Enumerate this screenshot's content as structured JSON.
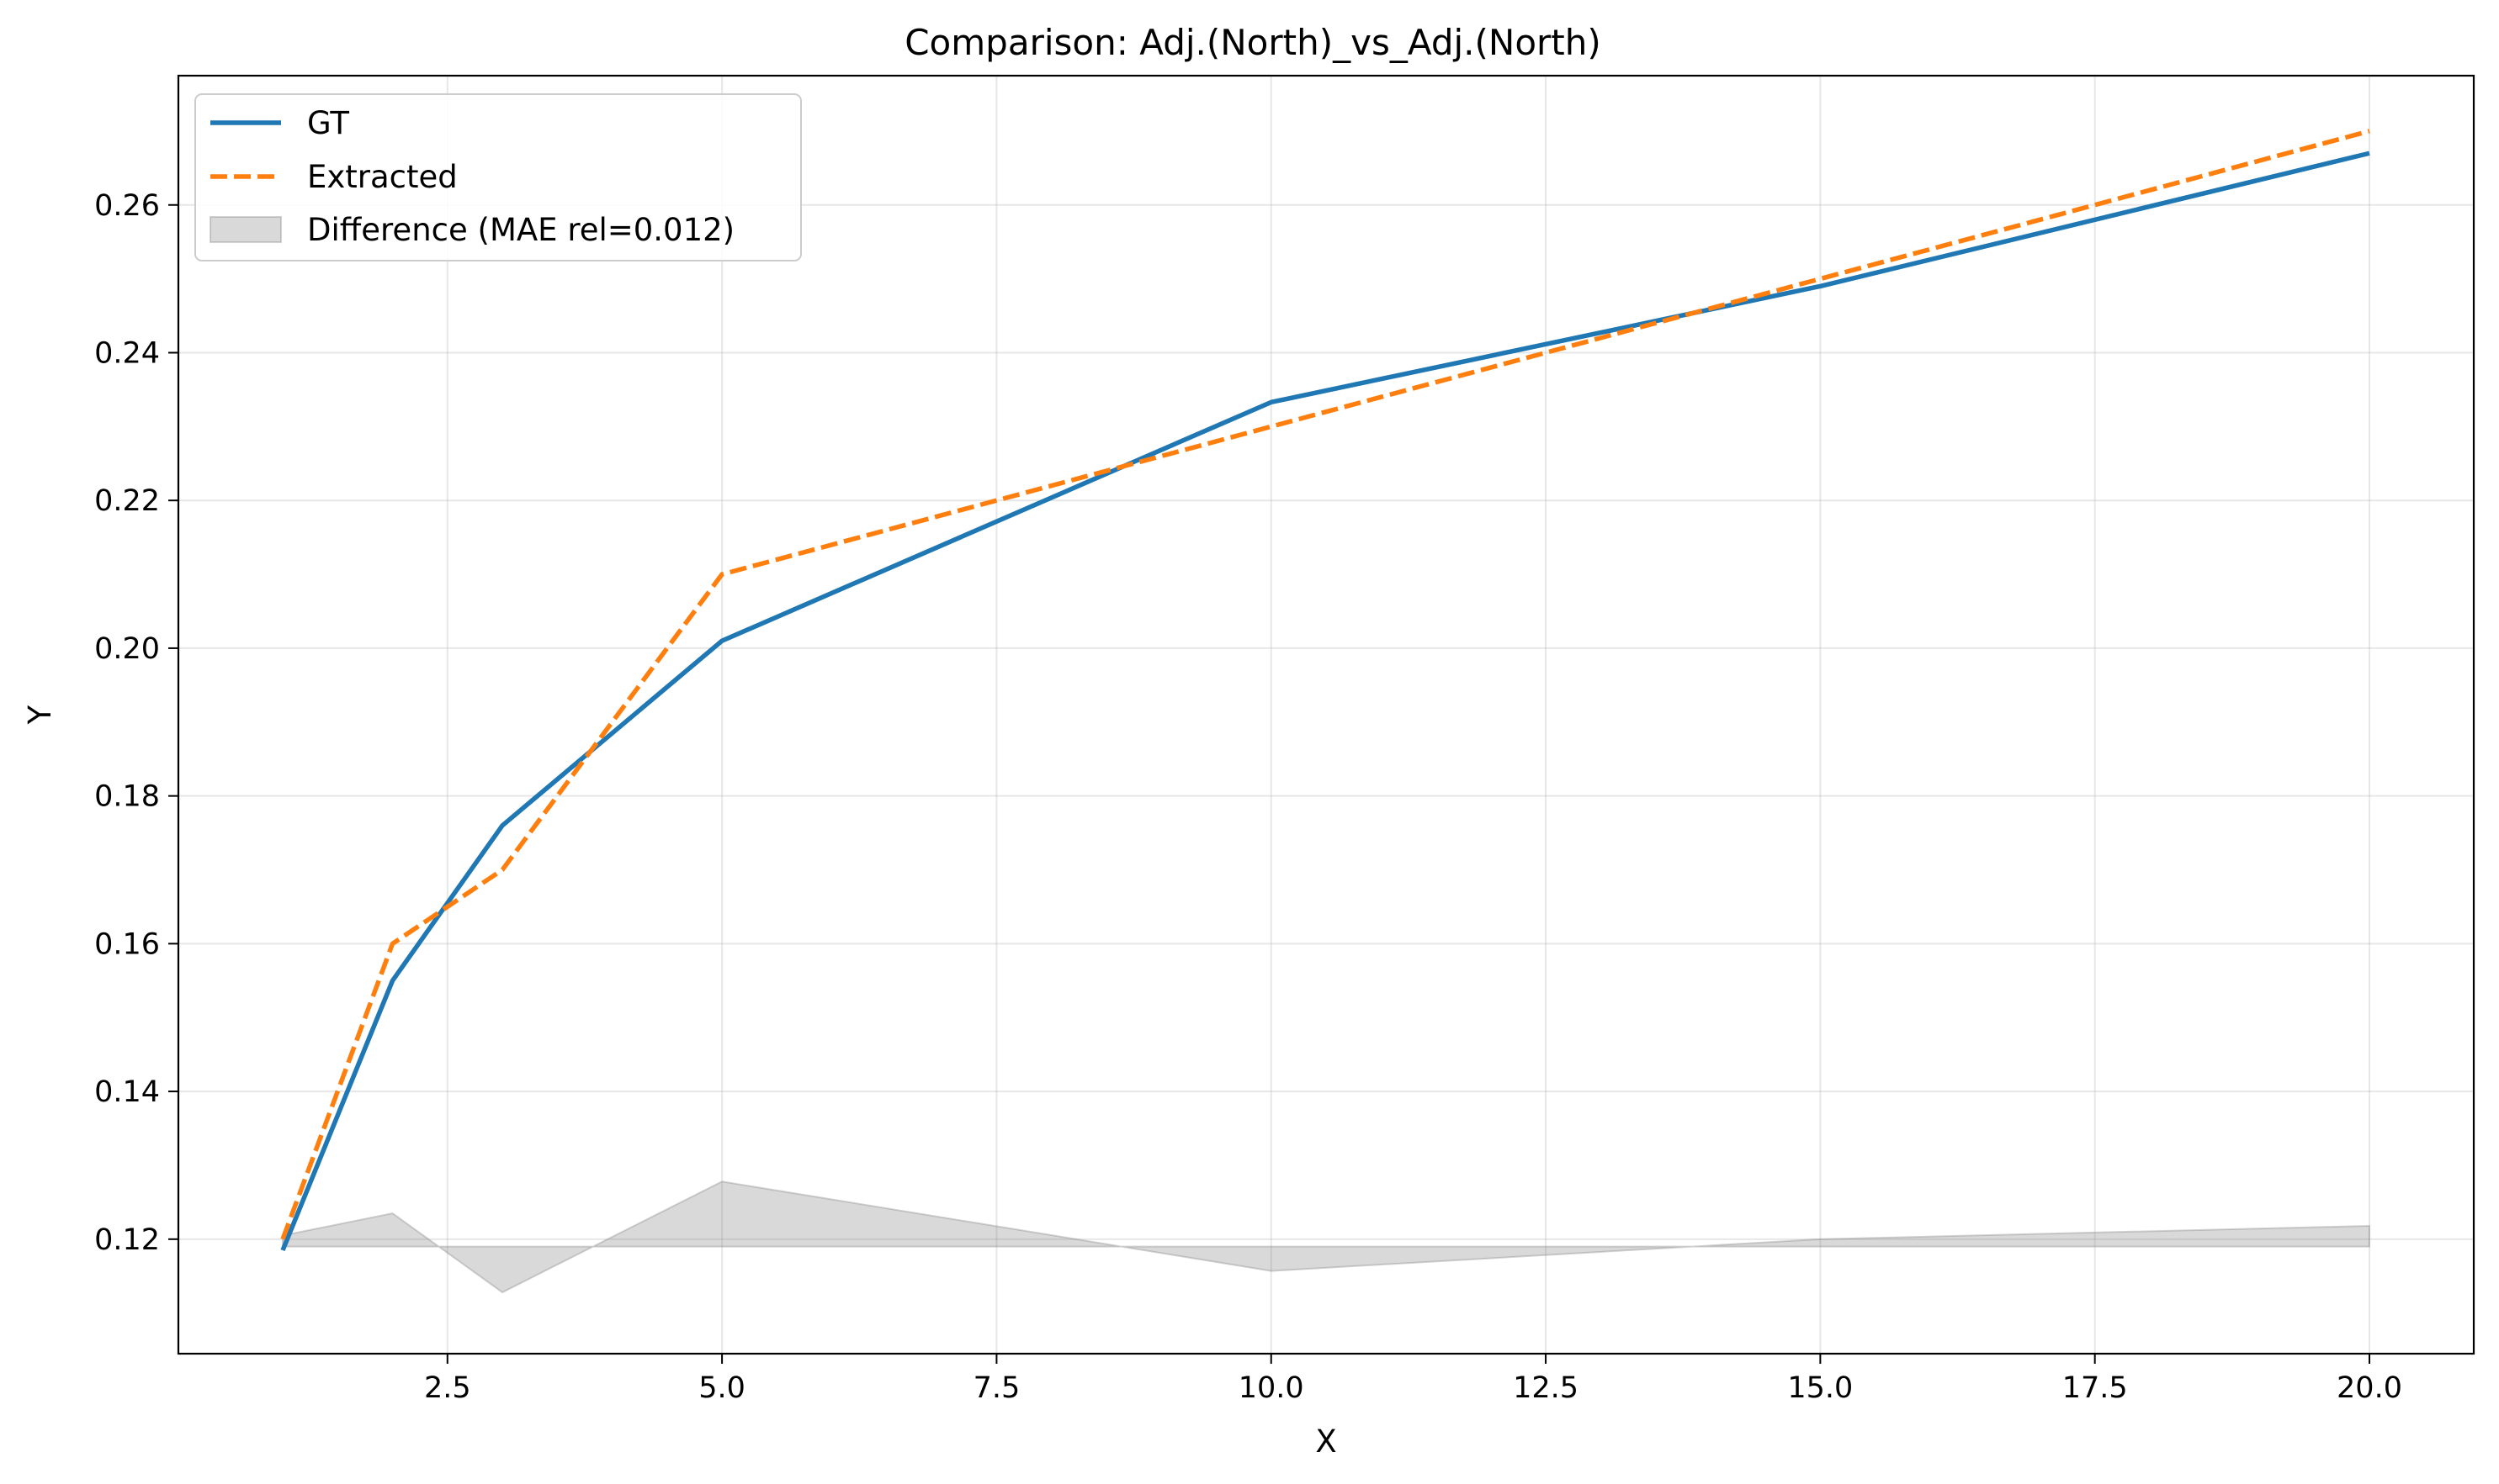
{
  "chart_data": {
    "type": "line",
    "title": "Comparison: Adj.(North)_vs_Adj.(North)",
    "xlabel": "X",
    "ylabel": "Y",
    "xlim": [
      0.05,
      20.95
    ],
    "ylim": [
      0.1045,
      0.2775
    ],
    "xticks": [
      2.5,
      5.0,
      7.5,
      10.0,
      12.5,
      15.0,
      17.5,
      20.0
    ],
    "xtick_labels": [
      "2.5",
      "5.0",
      "7.5",
      "10.0",
      "12.5",
      "15.0",
      "17.5",
      "20.0"
    ],
    "yticks": [
      0.12,
      0.14,
      0.16,
      0.18,
      0.2,
      0.22,
      0.24,
      0.26
    ],
    "ytick_labels": [
      "0.12",
      "0.14",
      "0.16",
      "0.18",
      "0.20",
      "0.22",
      "0.24",
      "0.26"
    ],
    "grid": true,
    "legend_position": "top-left",
    "series": [
      {
        "name": "GT",
        "color": "#1f77b4",
        "style": "solid",
        "x": [
          1,
          2,
          3,
          5,
          10,
          15,
          20
        ],
        "y": [
          0.1185,
          0.155,
          0.176,
          0.201,
          0.2333,
          0.249,
          0.267
        ]
      },
      {
        "name": "Extracted",
        "color": "#ff7f0e",
        "style": "dashed",
        "x": [
          1,
          2,
          3,
          5,
          10,
          15,
          20
        ],
        "y": [
          0.12,
          0.16,
          0.17,
          0.21,
          0.23,
          0.25,
          0.27
        ]
      }
    ],
    "difference_band": {
      "name": "Difference (MAE rel=0.012)",
      "color": "#808080",
      "baseline": 0.119,
      "x": [
        1,
        2,
        3,
        5,
        10,
        15,
        20
      ],
      "y": [
        0.1205,
        0.1235,
        0.1128,
        0.1278,
        0.1157,
        0.12,
        0.1218
      ]
    }
  }
}
